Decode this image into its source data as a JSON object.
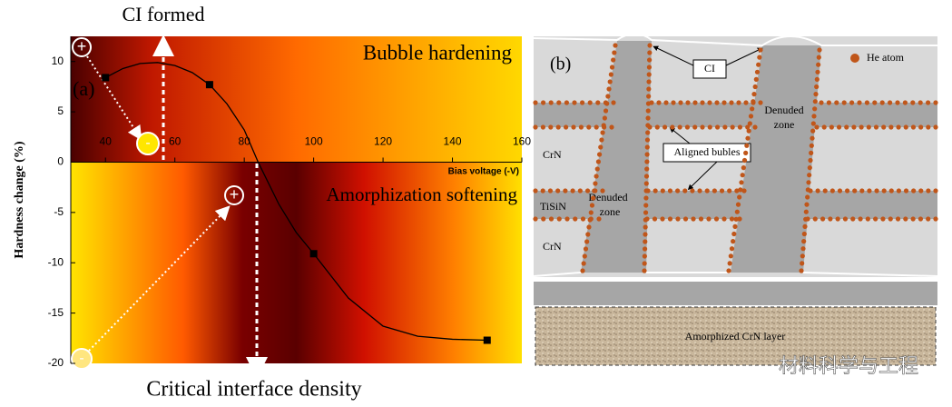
{
  "chart_data": {
    "type": "scatter",
    "x_label": "Bias voltage (-V)",
    "y_label": "Hardness change (%)",
    "x": [
      40,
      70,
      100,
      150
    ],
    "values": [
      8.4,
      7.7,
      -9.1,
      -17.7
    ],
    "color": "#000000",
    "fit": {
      "x": [
        40,
        45,
        50,
        55,
        60,
        65,
        70,
        75,
        80,
        84,
        90,
        95,
        100,
        110,
        120,
        130,
        140,
        150
      ],
      "values": [
        8.4,
        9.3,
        9.8,
        9.9,
        9.6,
        8.9,
        7.7,
        5.8,
        3.2,
        0,
        -4.2,
        -7,
        -9.1,
        -13.5,
        -16.3,
        -17.3,
        -17.6,
        -17.7
      ]
    },
    "xlim": [
      30,
      160
    ],
    "xticks": [
      40,
      60,
      80,
      100,
      120,
      140,
      160
    ],
    "ylim": [
      -20,
      12.5
    ],
    "yticks": [
      -20,
      -15,
      -10,
      -5,
      0,
      5,
      10
    ],
    "annotations": {
      "panel": "(a)",
      "top": "CI formed",
      "bottom": "Critical interface density",
      "upper_region": "Bubble hardening",
      "lower_region": "Amorphization softening"
    },
    "markers": [
      "+",
      "-",
      "+",
      "-"
    ]
  },
  "diagram": {
    "panel": "(b)",
    "legend": "He atom",
    "ci": "CI",
    "aligned": "Aligned bubles",
    "layers": [
      "CrN",
      "TiSiN",
      "CrN"
    ],
    "denuded_zones": [
      {
        "lines": [
          "Denuded",
          "zone"
        ]
      },
      {
        "lines": [
          "Denuded",
          "zone"
        ]
      }
    ],
    "amorphized": "Amorphized CrN layer",
    "watermark": "材料科学与工程"
  }
}
